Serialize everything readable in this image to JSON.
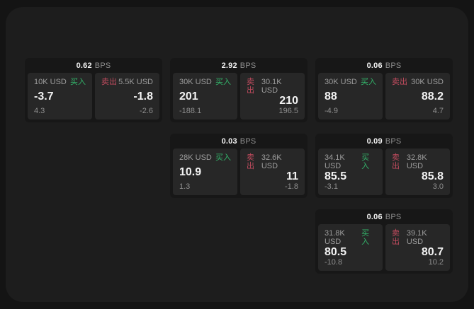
{
  "colors": {
    "page_bg": "#141414",
    "panel_bg": "#1d1d1d",
    "card_bg": "#171717",
    "tile_bg": "#272727",
    "text_primary": "#f2f2f2",
    "text_secondary": "#8f8f8f",
    "text_label": "#9d9d9d",
    "buy_green": "#33b36a",
    "sell_red": "#c04b5e"
  },
  "labels": {
    "bps_suffix": "BPS",
    "buy": "买入",
    "sell": "卖出"
  },
  "layout": {
    "col_lefts": [
      35,
      240,
      445
    ],
    "row_tops": [
      82,
      189,
      296
    ]
  },
  "cards": [
    {
      "bps": "0.62",
      "col": 1,
      "row": 1,
      "buy": {
        "size": "10K USD",
        "price": "-3.7",
        "delta": "4.3"
      },
      "sell": {
        "size": "5.5K USD",
        "price": "-1.8",
        "delta": "-2.6"
      }
    },
    {
      "bps": "2.92",
      "col": 2,
      "row": 1,
      "buy": {
        "size": "30K USD",
        "price": "201",
        "delta": "-188.1"
      },
      "sell": {
        "size": "30.1K USD",
        "price": "210",
        "delta": "196.5"
      }
    },
    {
      "bps": "0.06",
      "col": 3,
      "row": 1,
      "buy": {
        "size": "30K USD",
        "price": "88",
        "delta": "-4.9"
      },
      "sell": {
        "size": "30K USD",
        "price": "88.2",
        "delta": "4.7"
      }
    },
    {
      "bps": "0.03",
      "col": 2,
      "row": 2,
      "buy": {
        "size": "28K USD",
        "price": "10.9",
        "delta": "1.3"
      },
      "sell": {
        "size": "32.6K USD",
        "price": "11",
        "delta": "-1.8"
      }
    },
    {
      "bps": "0.09",
      "col": 3,
      "row": 2,
      "buy": {
        "size": "34.1K USD",
        "price": "85.5",
        "delta": "-3.1"
      },
      "sell": {
        "size": "32.8K USD",
        "price": "85.8",
        "delta": "3.0"
      }
    },
    {
      "bps": "0.06",
      "col": 3,
      "row": 3,
      "buy": {
        "size": "31.8K USD",
        "price": "80.5",
        "delta": "-10.8"
      },
      "sell": {
        "size": "39.1K USD",
        "price": "80.7",
        "delta": "10.2"
      }
    }
  ]
}
